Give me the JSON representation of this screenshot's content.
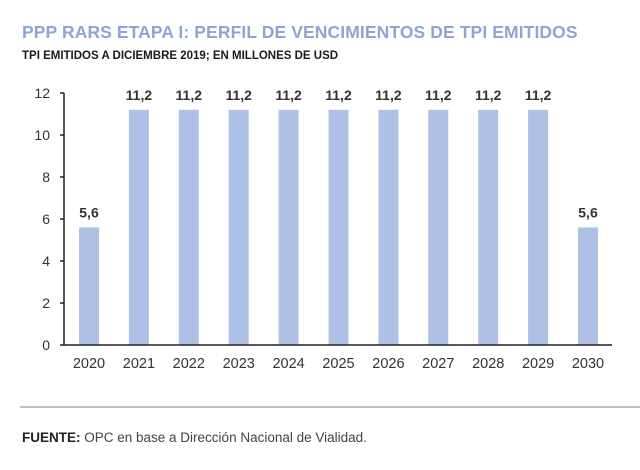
{
  "chart_data": {
    "type": "bar",
    "title": "PPP RARS ETAPA I: PERFIL DE VENCIMIENTOS DE TPI EMITIDOS",
    "subtitle": "TPI EMITIDOS A DICIEMBRE 2019; EN MILLONES DE USD",
    "categories": [
      "2020",
      "2021",
      "2022",
      "2023",
      "2024",
      "2025",
      "2026",
      "2027",
      "2028",
      "2029",
      "2030"
    ],
    "values": [
      5.6,
      11.2,
      11.2,
      11.2,
      11.2,
      11.2,
      11.2,
      11.2,
      11.2,
      11.2,
      5.6
    ],
    "data_labels": [
      "5,6",
      "11,2",
      "11,2",
      "11,2",
      "11,2",
      "11,2",
      "11,2",
      "11,2",
      "11,2",
      "11,2",
      "5,6"
    ],
    "xlabel": "",
    "ylabel": "",
    "ylim": [
      0,
      12
    ],
    "yticks": [
      "0",
      "2",
      "4",
      "6",
      "8",
      "10",
      "12"
    ],
    "grid": false,
    "legend": "none",
    "bar_color": "#aec0e6",
    "title_color": "#8ea5d2"
  },
  "source": {
    "label": "FUENTE:",
    "text": " OPC en base a Dirección Nacional de Vialidad."
  }
}
